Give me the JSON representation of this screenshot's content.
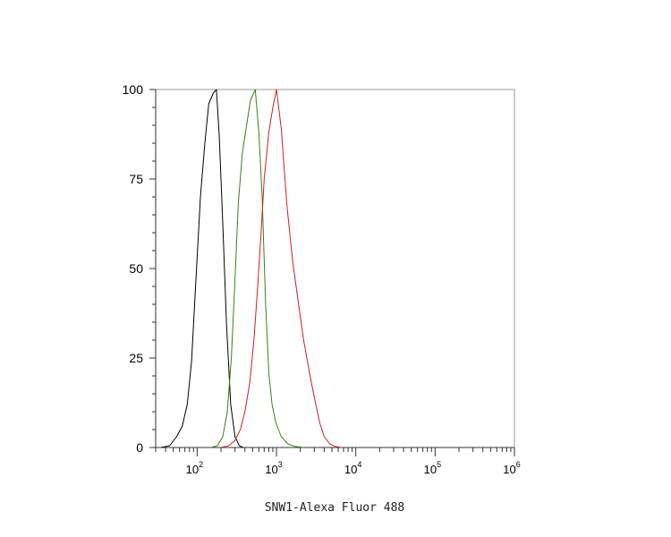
{
  "chart_data": {
    "type": "line",
    "title": "",
    "xlabel": "SNW1-Alexa Fluor 488",
    "ylabel": "",
    "x_scale": "log",
    "xlim": [
      30,
      1000000
    ],
    "ylim": [
      0,
      100
    ],
    "y_ticks": [
      0,
      25,
      50,
      75,
      100
    ],
    "x_ticks": [
      {
        "value": 100,
        "base": "10",
        "exp": "2"
      },
      {
        "value": 1000,
        "base": "10",
        "exp": "3"
      },
      {
        "value": 10000,
        "base": "10",
        "exp": "4"
      },
      {
        "value": 100000,
        "base": "10",
        "exp": "5"
      },
      {
        "value": 1000000,
        "base": "10",
        "exp": "6"
      }
    ],
    "grid": false,
    "legend": "none",
    "series": [
      {
        "color": "#000000",
        "points": [
          [
            35,
            0
          ],
          [
            45,
            0.5
          ],
          [
            55,
            3
          ],
          [
            65,
            6
          ],
          [
            75,
            12
          ],
          [
            85,
            24
          ],
          [
            95,
            44
          ],
          [
            110,
            70
          ],
          [
            125,
            85
          ],
          [
            140,
            96
          ],
          [
            160,
            99
          ],
          [
            175,
            100
          ],
          [
            190,
            87
          ],
          [
            210,
            63
          ],
          [
            235,
            34
          ],
          [
            265,
            12
          ],
          [
            300,
            3
          ],
          [
            340,
            0.5
          ],
          [
            380,
            0
          ]
        ]
      },
      {
        "color": "#3a7d1e",
        "points": [
          [
            150,
            0
          ],
          [
            180,
            0.5
          ],
          [
            210,
            3
          ],
          [
            240,
            10
          ],
          [
            270,
            25
          ],
          [
            300,
            47
          ],
          [
            330,
            68
          ],
          [
            370,
            82
          ],
          [
            420,
            90
          ],
          [
            470,
            97
          ],
          [
            540,
            100
          ],
          [
            600,
            88
          ],
          [
            660,
            70
          ],
          [
            730,
            40
          ],
          [
            800,
            21
          ],
          [
            880,
            12
          ],
          [
            980,
            7
          ],
          [
            1150,
            3
          ],
          [
            1400,
            1
          ],
          [
            1700,
            0.3
          ],
          [
            2200,
            0
          ]
        ]
      },
      {
        "color": "#cc2020",
        "points": [
          [
            200,
            0
          ],
          [
            250,
            0.5
          ],
          [
            300,
            2
          ],
          [
            350,
            5
          ],
          [
            400,
            10
          ],
          [
            460,
            18
          ],
          [
            520,
            30
          ],
          [
            580,
            45
          ],
          [
            640,
            60
          ],
          [
            700,
            75
          ],
          [
            800,
            88
          ],
          [
            900,
            95
          ],
          [
            1000,
            100
          ],
          [
            1150,
            89
          ],
          [
            1350,
            68
          ],
          [
            1600,
            52
          ],
          [
            1900,
            40
          ],
          [
            2200,
            30
          ],
          [
            2600,
            21
          ],
          [
            3000,
            14
          ],
          [
            3500,
            7
          ],
          [
            4000,
            3
          ],
          [
            4700,
            1
          ],
          [
            5500,
            0.3
          ],
          [
            6500,
            0
          ]
        ]
      }
    ]
  }
}
